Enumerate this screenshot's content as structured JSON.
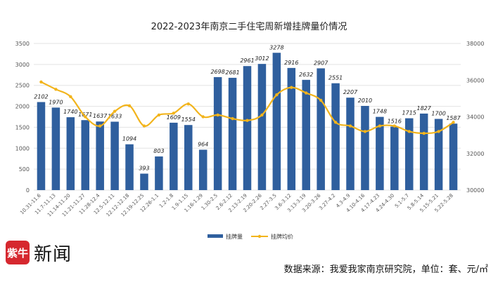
{
  "chart_data": {
    "type": "bar+line",
    "title": "2022-2023年南京二手住宅周新增挂牌量价情况",
    "categories": [
      "10.31-11.6",
      "11.7-11.13",
      "11.14-11.20",
      "11.21-11.27",
      "11.28-12.4",
      "12.5-12.11",
      "12.12-12.18",
      "12.19-12.25",
      "12.26-1.1",
      "1.2-1.8",
      "1.9-1.15",
      "1.16-1.29",
      "1.30-2.5",
      "2.6-2.12",
      "2.13-2.19",
      "2.20-2.26",
      "2.27-3.5",
      "3.6-3.12",
      "3.13-3.19",
      "3.20-3.26",
      "3.27-4.2",
      "4.3-4.9",
      "4.10-4.16",
      "4.17-4.23",
      "4.24-4.30",
      "5.1-5.7",
      "5.8-5.14",
      "5.15-5.21",
      "5.22-5.28"
    ],
    "series": [
      {
        "name": "挂牌量",
        "kind": "bar",
        "axis": "left",
        "color": "#2f5f9e",
        "values": [
          2102,
          1970,
          1740,
          1671,
          1637,
          1633,
          1094,
          393,
          803,
          1609,
          1554,
          964,
          2698,
          2681,
          2961,
          3012,
          3278,
          2916,
          2632,
          2907,
          2551,
          2207,
          2010,
          1748,
          1516,
          1715,
          1827,
          1700,
          1587
        ],
        "labels": [
          "2102",
          "1970",
          "1740",
          "1671",
          "1637",
          "1633",
          "1094",
          "393",
          "803",
          "1609",
          "1554",
          "964",
          "2698",
          "2681",
          "2961",
          "3012",
          "3278",
          "2916",
          "2632",
          "2907",
          "2551",
          "2207",
          "2010",
          "1748",
          "1516",
          "1715",
          "1827",
          "1700",
          "1587"
        ]
      },
      {
        "name": "挂牌均价",
        "kind": "line",
        "axis": "right",
        "color": "#f2b41c",
        "values": [
          35900,
          35500,
          35100,
          34000,
          33500,
          34300,
          34600,
          33500,
          34100,
          34200,
          34700,
          34000,
          34100,
          33900,
          33800,
          34100,
          35200,
          35600,
          35300,
          34900,
          33700,
          33500,
          33200,
          33500,
          33500,
          33200,
          33100,
          33200,
          33700
        ]
      }
    ],
    "y_left": {
      "ylim": [
        0,
        3500
      ],
      "ticks": [
        "0",
        "500",
        "1000",
        "1500",
        "2000",
        "2500",
        "3000",
        "3500"
      ]
    },
    "y_right": {
      "ylim": [
        30000,
        38000
      ],
      "ticks": [
        "30000",
        "32000",
        "34000",
        "36000",
        "38000"
      ]
    },
    "legend": {
      "placement": "bottom-center",
      "items": [
        "挂牌量",
        "挂牌均价"
      ]
    },
    "grid": true
  },
  "footer": {
    "logo_badge": "紫牛",
    "logo_text": "新闻",
    "source": "数据来源：我爱我家南京研究院，单位：套、元/㎡"
  }
}
